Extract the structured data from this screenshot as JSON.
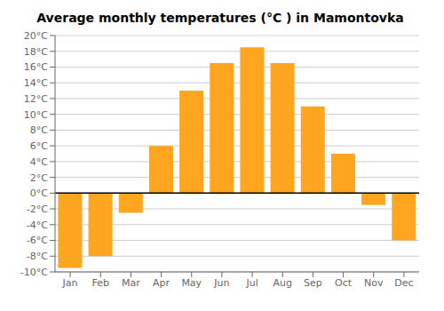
{
  "chart_data": {
    "type": "bar",
    "title": "Average monthly temperatures (°C ) in Mamontovka",
    "categories": [
      "Jan",
      "Feb",
      "Mar",
      "Apr",
      "May",
      "Jun",
      "Jul",
      "Aug",
      "Sep",
      "Oct",
      "Nov",
      "Dec"
    ],
    "values": [
      -9.5,
      -8.0,
      -2.5,
      6.0,
      13.0,
      16.5,
      18.5,
      16.5,
      11.0,
      5.0,
      -1.5,
      -6.0
    ],
    "color": "#FFA520",
    "ylim": [
      -10,
      20
    ],
    "yticks": [
      {
        "value": -10,
        "label": "-10°C"
      },
      {
        "value": -8,
        "label": "-8°C"
      },
      {
        "value": -6,
        "label": "-6°C"
      },
      {
        "value": -4,
        "label": "-4°C"
      },
      {
        "value": -2,
        "label": "-2°C"
      },
      {
        "value": 0,
        "label": "0°C"
      },
      {
        "value": 2,
        "label": "2°C"
      },
      {
        "value": 4,
        "label": "4°C"
      },
      {
        "value": 6,
        "label": "6°C"
      },
      {
        "value": 8,
        "label": "8°C"
      },
      {
        "value": 10,
        "label": "10°C"
      },
      {
        "value": 12,
        "label": "12°C"
      },
      {
        "value": 14,
        "label": "14°C"
      },
      {
        "value": 16,
        "label": "16°C"
      },
      {
        "value": 18,
        "label": "18°C"
      },
      {
        "value": 20,
        "label": "20°C"
      }
    ],
    "grid": true
  }
}
